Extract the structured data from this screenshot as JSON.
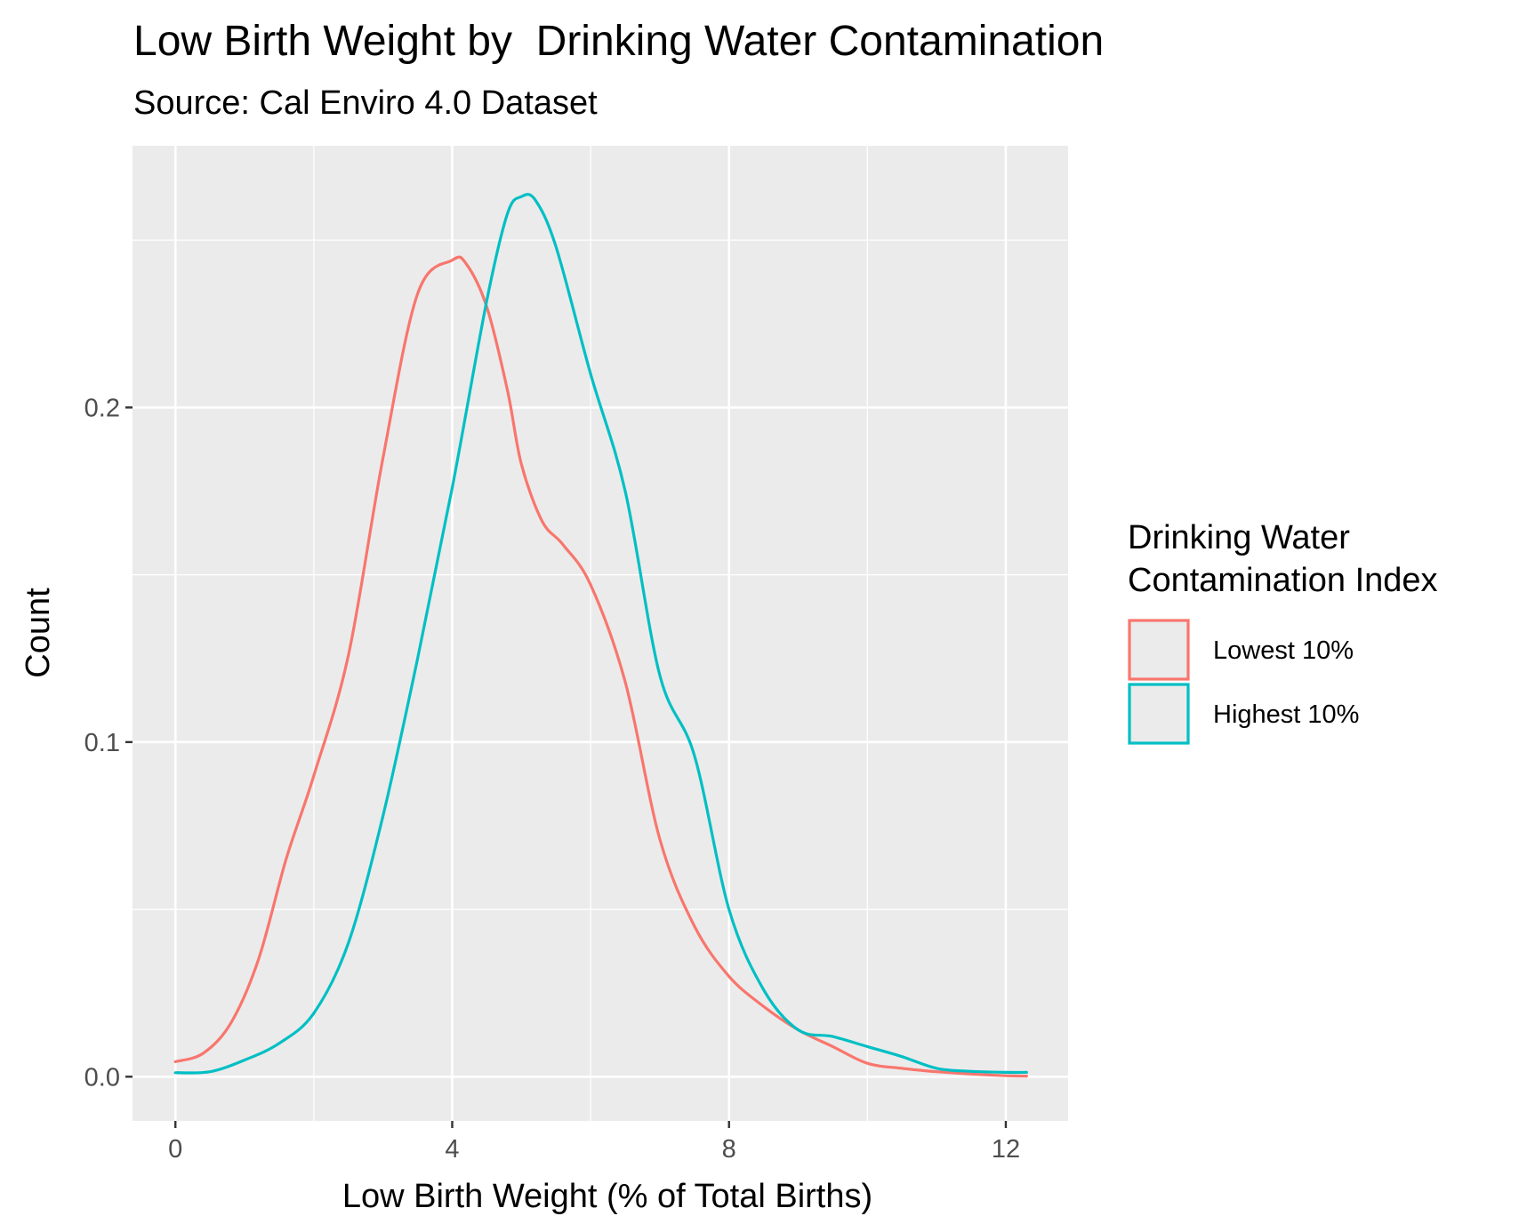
{
  "chart_data": {
    "type": "line",
    "title": "Low Birth Weight by  Drinking Water Contamination",
    "subtitle": "Source: Cal Enviro 4.0 Dataset",
    "xlabel": "Low Birth Weight (% of Total Births)",
    "ylabel": "Count",
    "xlim": [
      -0.62,
      12.9
    ],
    "ylim": [
      -0.0132,
      0.2782
    ],
    "x_ticks": [
      0,
      4,
      8,
      12
    ],
    "x_tick_labels": [
      "0",
      "4",
      "8",
      "12"
    ],
    "y_ticks": [
      0.0,
      0.1,
      0.2
    ],
    "y_tick_labels": [
      "0.0",
      "0.1",
      "0.2"
    ],
    "grid": true,
    "background": "#ebebeb",
    "legend": {
      "title": "Drinking Water\nContamination Index",
      "position": "right"
    },
    "series": [
      {
        "name": "Lowest 10%",
        "color": "#f8766d",
        "x": [
          0.0,
          0.4,
          0.8,
          1.2,
          1.6,
          2.0,
          2.5,
          3.0,
          3.5,
          4.0,
          4.2,
          4.5,
          4.8,
          5.0,
          5.3,
          5.6,
          6.0,
          6.5,
          7.0,
          7.5,
          8.0,
          8.5,
          9.0,
          9.5,
          10.0,
          10.5,
          11.0,
          11.5,
          12.0,
          12.3
        ],
        "y": [
          0.0045,
          0.007,
          0.016,
          0.035,
          0.065,
          0.09,
          0.126,
          0.185,
          0.234,
          0.244,
          0.243,
          0.23,
          0.205,
          0.183,
          0.166,
          0.159,
          0.147,
          0.118,
          0.071,
          0.045,
          0.03,
          0.021,
          0.014,
          0.009,
          0.004,
          0.0025,
          0.0015,
          0.0008,
          0.0003,
          0.0002
        ]
      },
      {
        "name": "Highest 10%",
        "color": "#00bfc4",
        "x": [
          0.0,
          0.5,
          1.0,
          1.5,
          2.0,
          2.5,
          3.0,
          3.5,
          4.0,
          4.5,
          4.8,
          5.0,
          5.2,
          5.5,
          6.0,
          6.5,
          7.0,
          7.5,
          8.0,
          8.5,
          9.0,
          9.5,
          10.0,
          10.5,
          11.0,
          11.5,
          12.0,
          12.3
        ],
        "y": [
          0.0012,
          0.0015,
          0.005,
          0.01,
          0.019,
          0.04,
          0.078,
          0.125,
          0.176,
          0.232,
          0.258,
          0.263,
          0.262,
          0.248,
          0.21,
          0.175,
          0.12,
          0.096,
          0.05,
          0.026,
          0.014,
          0.012,
          0.009,
          0.006,
          0.0025,
          0.0016,
          0.0013,
          0.0013
        ]
      }
    ]
  }
}
